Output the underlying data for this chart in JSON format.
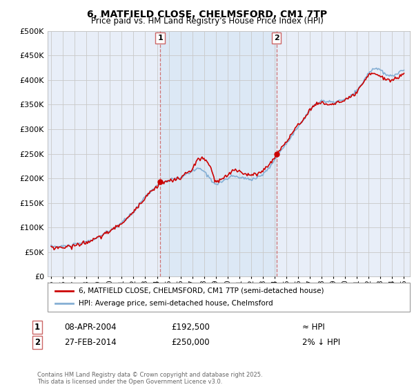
{
  "title": "6, MATFIELD CLOSE, CHELMSFORD, CM1 7TP",
  "subtitle": "Price paid vs. HM Land Registry's House Price Index (HPI)",
  "footer": "Contains HM Land Registry data © Crown copyright and database right 2025.\nThis data is licensed under the Open Government Licence v3.0.",
  "legend_line1": "6, MATFIELD CLOSE, CHELMSFORD, CM1 7TP (semi-detached house)",
  "legend_line2": "HPI: Average price, semi-detached house, Chelmsford",
  "annotation1_date": "08-APR-2004",
  "annotation1_price": "£192,500",
  "annotation1_hpi": "≈ HPI",
  "annotation2_date": "27-FEB-2014",
  "annotation2_price": "£250,000",
  "annotation2_hpi": "2% ↓ HPI",
  "red_color": "#cc0000",
  "blue_color": "#85afd4",
  "vline_color": "#cc6666",
  "shade_color": "#dce8f5",
  "background_color": "#e8eef8",
  "grid_color": "#c8c8c8",
  "ylim": [
    0,
    500000
  ],
  "yticks": [
    0,
    50000,
    100000,
    150000,
    200000,
    250000,
    300000,
    350000,
    400000,
    450000,
    500000
  ],
  "vline1_x": 2004.27,
  "vline2_x": 2014.16,
  "dot1_x": 2004.27,
  "dot1_y": 192500,
  "dot2_x": 2014.16,
  "dot2_y": 250000,
  "xlim_left": 1994.7,
  "xlim_right": 2025.5
}
